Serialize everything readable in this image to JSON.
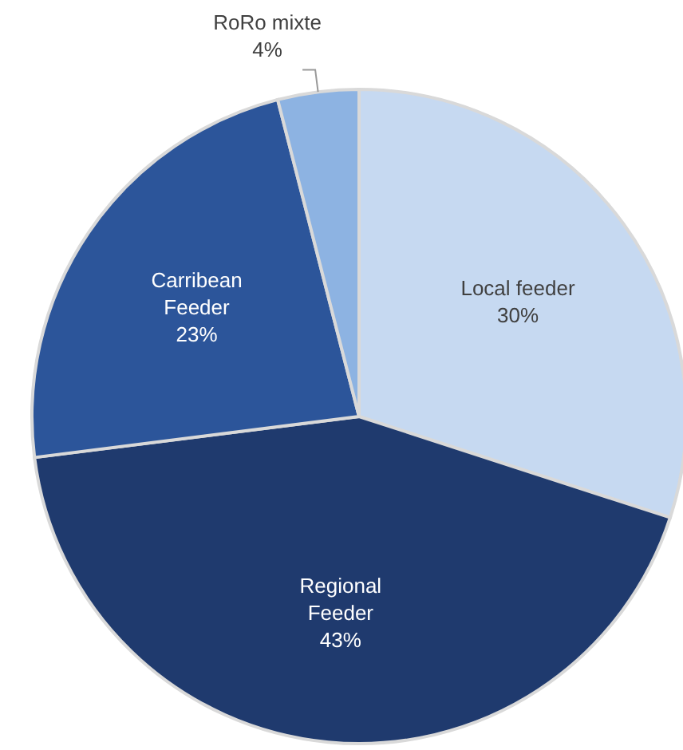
{
  "chart_data": {
    "type": "pie",
    "categories": [
      "Local feeder",
      "Regional Feeder",
      "Carribean Feeder",
      "RoRo mixte"
    ],
    "values": [
      30,
      43,
      23,
      4
    ],
    "colors": [
      "#c6d9f1",
      "#1f3a6e",
      "#2c559a",
      "#8db3e2"
    ],
    "value_labels": [
      "30%",
      "43%",
      "23%",
      "4%"
    ]
  }
}
